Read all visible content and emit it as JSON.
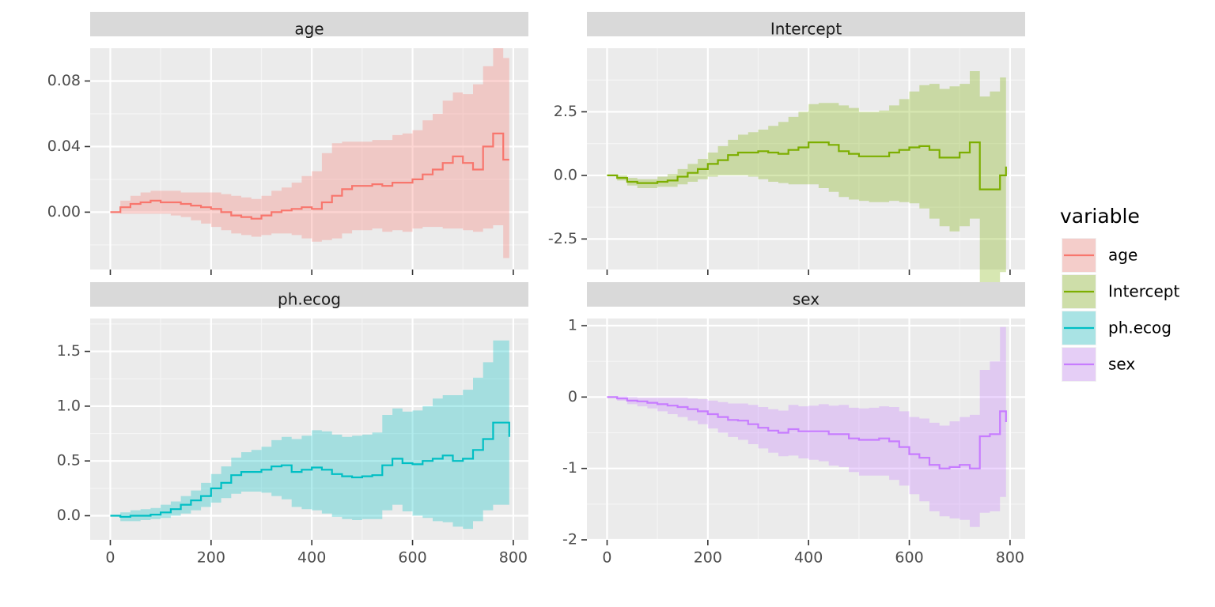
{
  "chart_data": {
    "type": "line",
    "subtype": "step line with confidence ribbon, faceted 2x2",
    "facet_layout": "2x2, free y scales, shared x axis",
    "legend": {
      "title": "variable",
      "position": "right",
      "entries": [
        "age",
        "Intercept",
        "ph.ecog",
        "sex"
      ]
    },
    "grid": true,
    "x_ticks": [
      0,
      200,
      400,
      600,
      800
    ],
    "panels": [
      {
        "title": "age",
        "color": "#F8766D",
        "xlim": [
          -40,
          830
        ],
        "ylim": [
          -0.035,
          0.1
        ],
        "y_ticks": [
          0.0,
          0.04,
          0.08
        ],
        "y_tick_labels": [
          "0.00",
          "0.04",
          "0.08"
        ],
        "x": [
          0,
          20,
          40,
          60,
          80,
          100,
          120,
          140,
          160,
          180,
          200,
          220,
          240,
          260,
          280,
          300,
          320,
          340,
          360,
          380,
          400,
          420,
          440,
          460,
          480,
          500,
          520,
          540,
          560,
          580,
          600,
          620,
          640,
          660,
          680,
          700,
          720,
          740,
          760,
          780,
          792
        ],
        "estimate": [
          0.0,
          0.003,
          0.005,
          0.006,
          0.007,
          0.006,
          0.006,
          0.005,
          0.004,
          0.003,
          0.002,
          0.0,
          -0.002,
          -0.003,
          -0.004,
          -0.002,
          0.0,
          0.001,
          0.002,
          0.003,
          0.002,
          0.006,
          0.01,
          0.014,
          0.016,
          0.016,
          0.017,
          0.016,
          0.018,
          0.018,
          0.02,
          0.023,
          0.026,
          0.03,
          0.034,
          0.03,
          0.026,
          0.04,
          0.048,
          0.032,
          0.032
        ],
        "lower": [
          0.0,
          -0.001,
          -0.001,
          -0.001,
          -0.001,
          -0.001,
          -0.002,
          -0.003,
          -0.005,
          -0.007,
          -0.009,
          -0.011,
          -0.013,
          -0.014,
          -0.015,
          -0.014,
          -0.013,
          -0.013,
          -0.014,
          -0.016,
          -0.018,
          -0.017,
          -0.016,
          -0.013,
          -0.011,
          -0.011,
          -0.01,
          -0.012,
          -0.011,
          -0.012,
          -0.01,
          -0.009,
          -0.009,
          -0.01,
          -0.01,
          -0.011,
          -0.012,
          -0.01,
          -0.008,
          -0.028,
          -0.028
        ],
        "upper": [
          0.0,
          0.007,
          0.01,
          0.012,
          0.013,
          0.013,
          0.013,
          0.012,
          0.012,
          0.012,
          0.012,
          0.011,
          0.01,
          0.009,
          0.008,
          0.01,
          0.013,
          0.015,
          0.018,
          0.022,
          0.025,
          0.036,
          0.042,
          0.043,
          0.043,
          0.043,
          0.044,
          0.044,
          0.047,
          0.048,
          0.05,
          0.056,
          0.06,
          0.068,
          0.073,
          0.072,
          0.078,
          0.089,
          0.1,
          0.094,
          0.094
        ]
      },
      {
        "title": "Intercept",
        "color": "#7CAE00",
        "xlim": [
          -40,
          830
        ],
        "ylim": [
          -3.7,
          5.0
        ],
        "y_ticks": [
          -2.5,
          0.0,
          2.5
        ],
        "y_tick_labels": [
          "-2.5",
          "0.0",
          "2.5"
        ],
        "x": [
          0,
          20,
          40,
          60,
          80,
          100,
          120,
          140,
          160,
          180,
          200,
          220,
          240,
          260,
          280,
          300,
          320,
          340,
          360,
          380,
          400,
          420,
          440,
          460,
          480,
          500,
          520,
          540,
          560,
          580,
          600,
          620,
          640,
          660,
          680,
          700,
          720,
          740,
          760,
          780,
          792
        ],
        "estimate": [
          0.0,
          -0.1,
          -0.25,
          -0.3,
          -0.3,
          -0.25,
          -0.2,
          -0.05,
          0.1,
          0.25,
          0.45,
          0.6,
          0.8,
          0.9,
          0.9,
          0.95,
          0.9,
          0.85,
          1.0,
          1.1,
          1.3,
          1.3,
          1.2,
          0.95,
          0.85,
          0.75,
          0.75,
          0.75,
          0.9,
          1.0,
          1.1,
          1.15,
          1.0,
          0.7,
          0.7,
          0.9,
          1.3,
          -0.55,
          -0.55,
          0.0,
          0.35
        ],
        "lower": [
          0.0,
          -0.2,
          -0.4,
          -0.5,
          -0.5,
          -0.45,
          -0.45,
          -0.35,
          -0.25,
          -0.15,
          -0.05,
          0.0,
          0.0,
          0.0,
          -0.05,
          -0.15,
          -0.25,
          -0.3,
          -0.35,
          -0.35,
          -0.35,
          -0.5,
          -0.65,
          -0.85,
          -0.95,
          -1.0,
          -1.05,
          -1.05,
          -1.0,
          -1.05,
          -1.1,
          -1.3,
          -1.7,
          -2.0,
          -2.2,
          -2.0,
          -1.7,
          -4.2,
          -4.2,
          -3.8,
          -3.8
        ],
        "upper": [
          0.0,
          0.0,
          -0.1,
          -0.15,
          -0.15,
          -0.05,
          0.05,
          0.25,
          0.45,
          0.65,
          0.9,
          1.15,
          1.4,
          1.6,
          1.7,
          1.8,
          1.95,
          2.1,
          2.3,
          2.5,
          2.8,
          2.85,
          2.85,
          2.75,
          2.65,
          2.5,
          2.5,
          2.55,
          2.75,
          3.0,
          3.3,
          3.55,
          3.6,
          3.4,
          3.5,
          3.6,
          4.1,
          3.1,
          3.3,
          3.85,
          3.85
        ]
      },
      {
        "title": "ph.ecog",
        "color": "#00BFC4",
        "xlim": [
          -40,
          830
        ],
        "ylim": [
          -0.22,
          1.8
        ],
        "y_ticks": [
          0.0,
          0.5,
          1.0,
          1.5
        ],
        "y_tick_labels": [
          "0.0",
          "0.5",
          "1.0",
          "1.5"
        ],
        "x": [
          0,
          20,
          40,
          60,
          80,
          100,
          120,
          140,
          160,
          180,
          200,
          220,
          240,
          260,
          280,
          300,
          320,
          340,
          360,
          380,
          400,
          420,
          440,
          460,
          480,
          500,
          520,
          540,
          560,
          580,
          600,
          620,
          640,
          660,
          680,
          700,
          720,
          740,
          760,
          780,
          792
        ],
        "estimate": [
          0.0,
          -0.01,
          0.0,
          0.0,
          0.01,
          0.03,
          0.06,
          0.1,
          0.14,
          0.18,
          0.25,
          0.3,
          0.37,
          0.4,
          0.4,
          0.42,
          0.45,
          0.46,
          0.4,
          0.42,
          0.44,
          0.42,
          0.38,
          0.36,
          0.35,
          0.36,
          0.37,
          0.46,
          0.52,
          0.48,
          0.47,
          0.5,
          0.52,
          0.55,
          0.5,
          0.52,
          0.6,
          0.7,
          0.85,
          0.85,
          0.72
        ],
        "lower": [
          0.0,
          -0.05,
          -0.05,
          -0.04,
          -0.03,
          -0.02,
          0.0,
          0.02,
          0.05,
          0.08,
          0.12,
          0.16,
          0.2,
          0.22,
          0.22,
          0.21,
          0.18,
          0.15,
          0.08,
          0.06,
          0.05,
          0.02,
          -0.01,
          -0.03,
          -0.04,
          -0.03,
          -0.03,
          0.05,
          0.1,
          0.04,
          0.0,
          -0.02,
          -0.05,
          -0.06,
          -0.1,
          -0.12,
          -0.05,
          0.05,
          0.1,
          0.1,
          0.1
        ],
        "upper": [
          0.0,
          0.03,
          0.05,
          0.06,
          0.07,
          0.1,
          0.13,
          0.18,
          0.23,
          0.3,
          0.38,
          0.45,
          0.53,
          0.58,
          0.6,
          0.63,
          0.69,
          0.72,
          0.7,
          0.73,
          0.78,
          0.77,
          0.74,
          0.72,
          0.73,
          0.74,
          0.76,
          0.92,
          0.98,
          0.95,
          0.96,
          1.0,
          1.07,
          1.1,
          1.1,
          1.15,
          1.26,
          1.4,
          1.6,
          1.6,
          1.6
        ]
      },
      {
        "title": "sex",
        "color": "#C77CFF",
        "xlim": [
          -40,
          830
        ],
        "ylim": [
          -2.0,
          1.1
        ],
        "y_ticks": [
          -2,
          -1,
          0,
          1
        ],
        "y_tick_labels": [
          "-2",
          "-1",
          "0",
          "1"
        ],
        "x": [
          0,
          20,
          40,
          60,
          80,
          100,
          120,
          140,
          160,
          180,
          200,
          220,
          240,
          260,
          280,
          300,
          320,
          340,
          360,
          380,
          400,
          420,
          440,
          460,
          480,
          500,
          520,
          540,
          560,
          580,
          600,
          620,
          640,
          660,
          680,
          700,
          720,
          740,
          760,
          780,
          792
        ],
        "estimate": [
          0.0,
          -0.02,
          -0.05,
          -0.06,
          -0.08,
          -0.1,
          -0.12,
          -0.14,
          -0.17,
          -0.2,
          -0.24,
          -0.28,
          -0.32,
          -0.33,
          -0.38,
          -0.43,
          -0.47,
          -0.5,
          -0.45,
          -0.48,
          -0.48,
          -0.48,
          -0.52,
          -0.52,
          -0.58,
          -0.6,
          -0.6,
          -0.58,
          -0.62,
          -0.7,
          -0.8,
          -0.85,
          -0.95,
          -1.0,
          -0.98,
          -0.95,
          -1.0,
          -0.55,
          -0.52,
          -0.2,
          -0.35
        ],
        "lower": [
          0.0,
          -0.05,
          -0.1,
          -0.13,
          -0.16,
          -0.2,
          -0.24,
          -0.28,
          -0.33,
          -0.38,
          -0.44,
          -0.5,
          -0.56,
          -0.6,
          -0.66,
          -0.72,
          -0.78,
          -0.83,
          -0.82,
          -0.86,
          -0.88,
          -0.9,
          -0.96,
          -0.98,
          -1.05,
          -1.1,
          -1.1,
          -1.1,
          -1.16,
          -1.24,
          -1.36,
          -1.46,
          -1.6,
          -1.67,
          -1.7,
          -1.72,
          -1.82,
          -1.62,
          -1.6,
          -1.4,
          -1.4
        ],
        "upper": [
          0.0,
          0.01,
          0.0,
          -0.01,
          -0.01,
          -0.01,
          -0.01,
          -0.01,
          -0.02,
          -0.03,
          -0.05,
          -0.07,
          -0.09,
          -0.09,
          -0.11,
          -0.14,
          -0.17,
          -0.19,
          -0.11,
          -0.13,
          -0.12,
          -0.1,
          -0.12,
          -0.11,
          -0.15,
          -0.16,
          -0.15,
          -0.13,
          -0.14,
          -0.2,
          -0.28,
          -0.3,
          -0.36,
          -0.4,
          -0.34,
          -0.28,
          -0.25,
          0.38,
          0.5,
          0.98,
          0.98
        ]
      }
    ]
  }
}
